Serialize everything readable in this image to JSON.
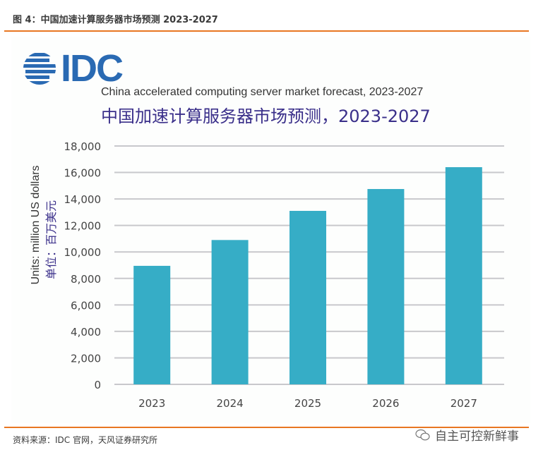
{
  "caption": "图 4：中国加速计算服务器市场预测 2023-2027",
  "source": "资料来源：IDC 官网，天风证券研究所",
  "watermark": "自主可控新鲜事",
  "logo": {
    "text": "IDC",
    "icon": "idc-globe-icon",
    "color": "#2a6ab3"
  },
  "colors": {
    "bar": "#36adc6",
    "accent_rule": "#e87722",
    "title_zh": "#3a2f8a",
    "grid": "#c8c8cc"
  },
  "chart_data": {
    "type": "bar",
    "title": "China accelerated computing server market forecast, 2023-2027",
    "subtitle": "中国加速计算服务器市场预测，2023-2027",
    "xlabel": "",
    "ylabel": "Units: million US dollars",
    "ylabel_zh": "单位：百万美元",
    "categories": [
      "2023",
      "2024",
      "2025",
      "2026",
      "2027"
    ],
    "values": [
      8950,
      10900,
      13100,
      14750,
      16400
    ],
    "ylim": [
      0,
      18000
    ],
    "yticks": [
      0,
      2000,
      4000,
      6000,
      8000,
      10000,
      12000,
      14000,
      16000,
      18000
    ],
    "ytick_labels": [
      "0",
      "2,000",
      "4,000",
      "6,000",
      "8,000",
      "10,000",
      "12,000",
      "14,000",
      "16,000",
      "18,000"
    ],
    "grid": true,
    "legend": "none"
  }
}
